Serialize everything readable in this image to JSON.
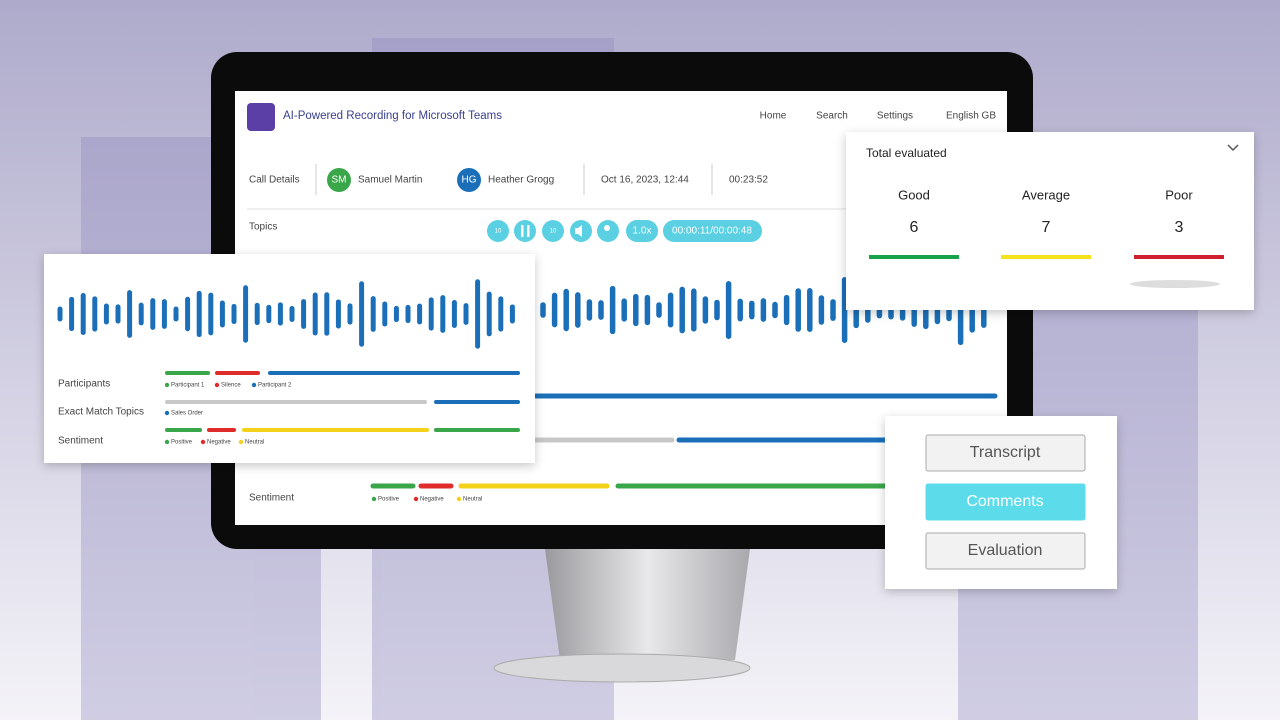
{
  "header": {
    "title": "AI-Powered Recording for Microsoft Teams",
    "nav": [
      "Home",
      "Search",
      "Settings",
      "English GB"
    ]
  },
  "call_details": {
    "label": "Call Details",
    "participants": [
      {
        "initials": "SM",
        "name": "Samuel Martin"
      },
      {
        "initials": "HG",
        "name": "Heather Grogg"
      }
    ],
    "date": "Oct 16, 2023, 12:44",
    "duration": "00:23:52"
  },
  "player": {
    "topics_label": "Topics",
    "skip": "10",
    "speed": "1.0x",
    "time": "00:00:11/00:00:48"
  },
  "timeline": {
    "participants": {
      "label": "Participants",
      "legend": [
        "Participant 1",
        "Silence",
        "Participant 2"
      ]
    },
    "topics": {
      "label": "Exact Match Topics",
      "legend": [
        "Sales Order"
      ]
    },
    "sentiment": {
      "label": "Sentiment",
      "legend": [
        "Positive",
        "Negative",
        "Neutral"
      ]
    }
  },
  "evaluation": {
    "title": "Total evaluated",
    "items": [
      {
        "label": "Good",
        "value": 6
      },
      {
        "label": "Average",
        "value": 7
      },
      {
        "label": "Poor",
        "value": 3
      }
    ]
  },
  "actions": [
    "Transcript",
    "Comments",
    "Evaluation"
  ]
}
